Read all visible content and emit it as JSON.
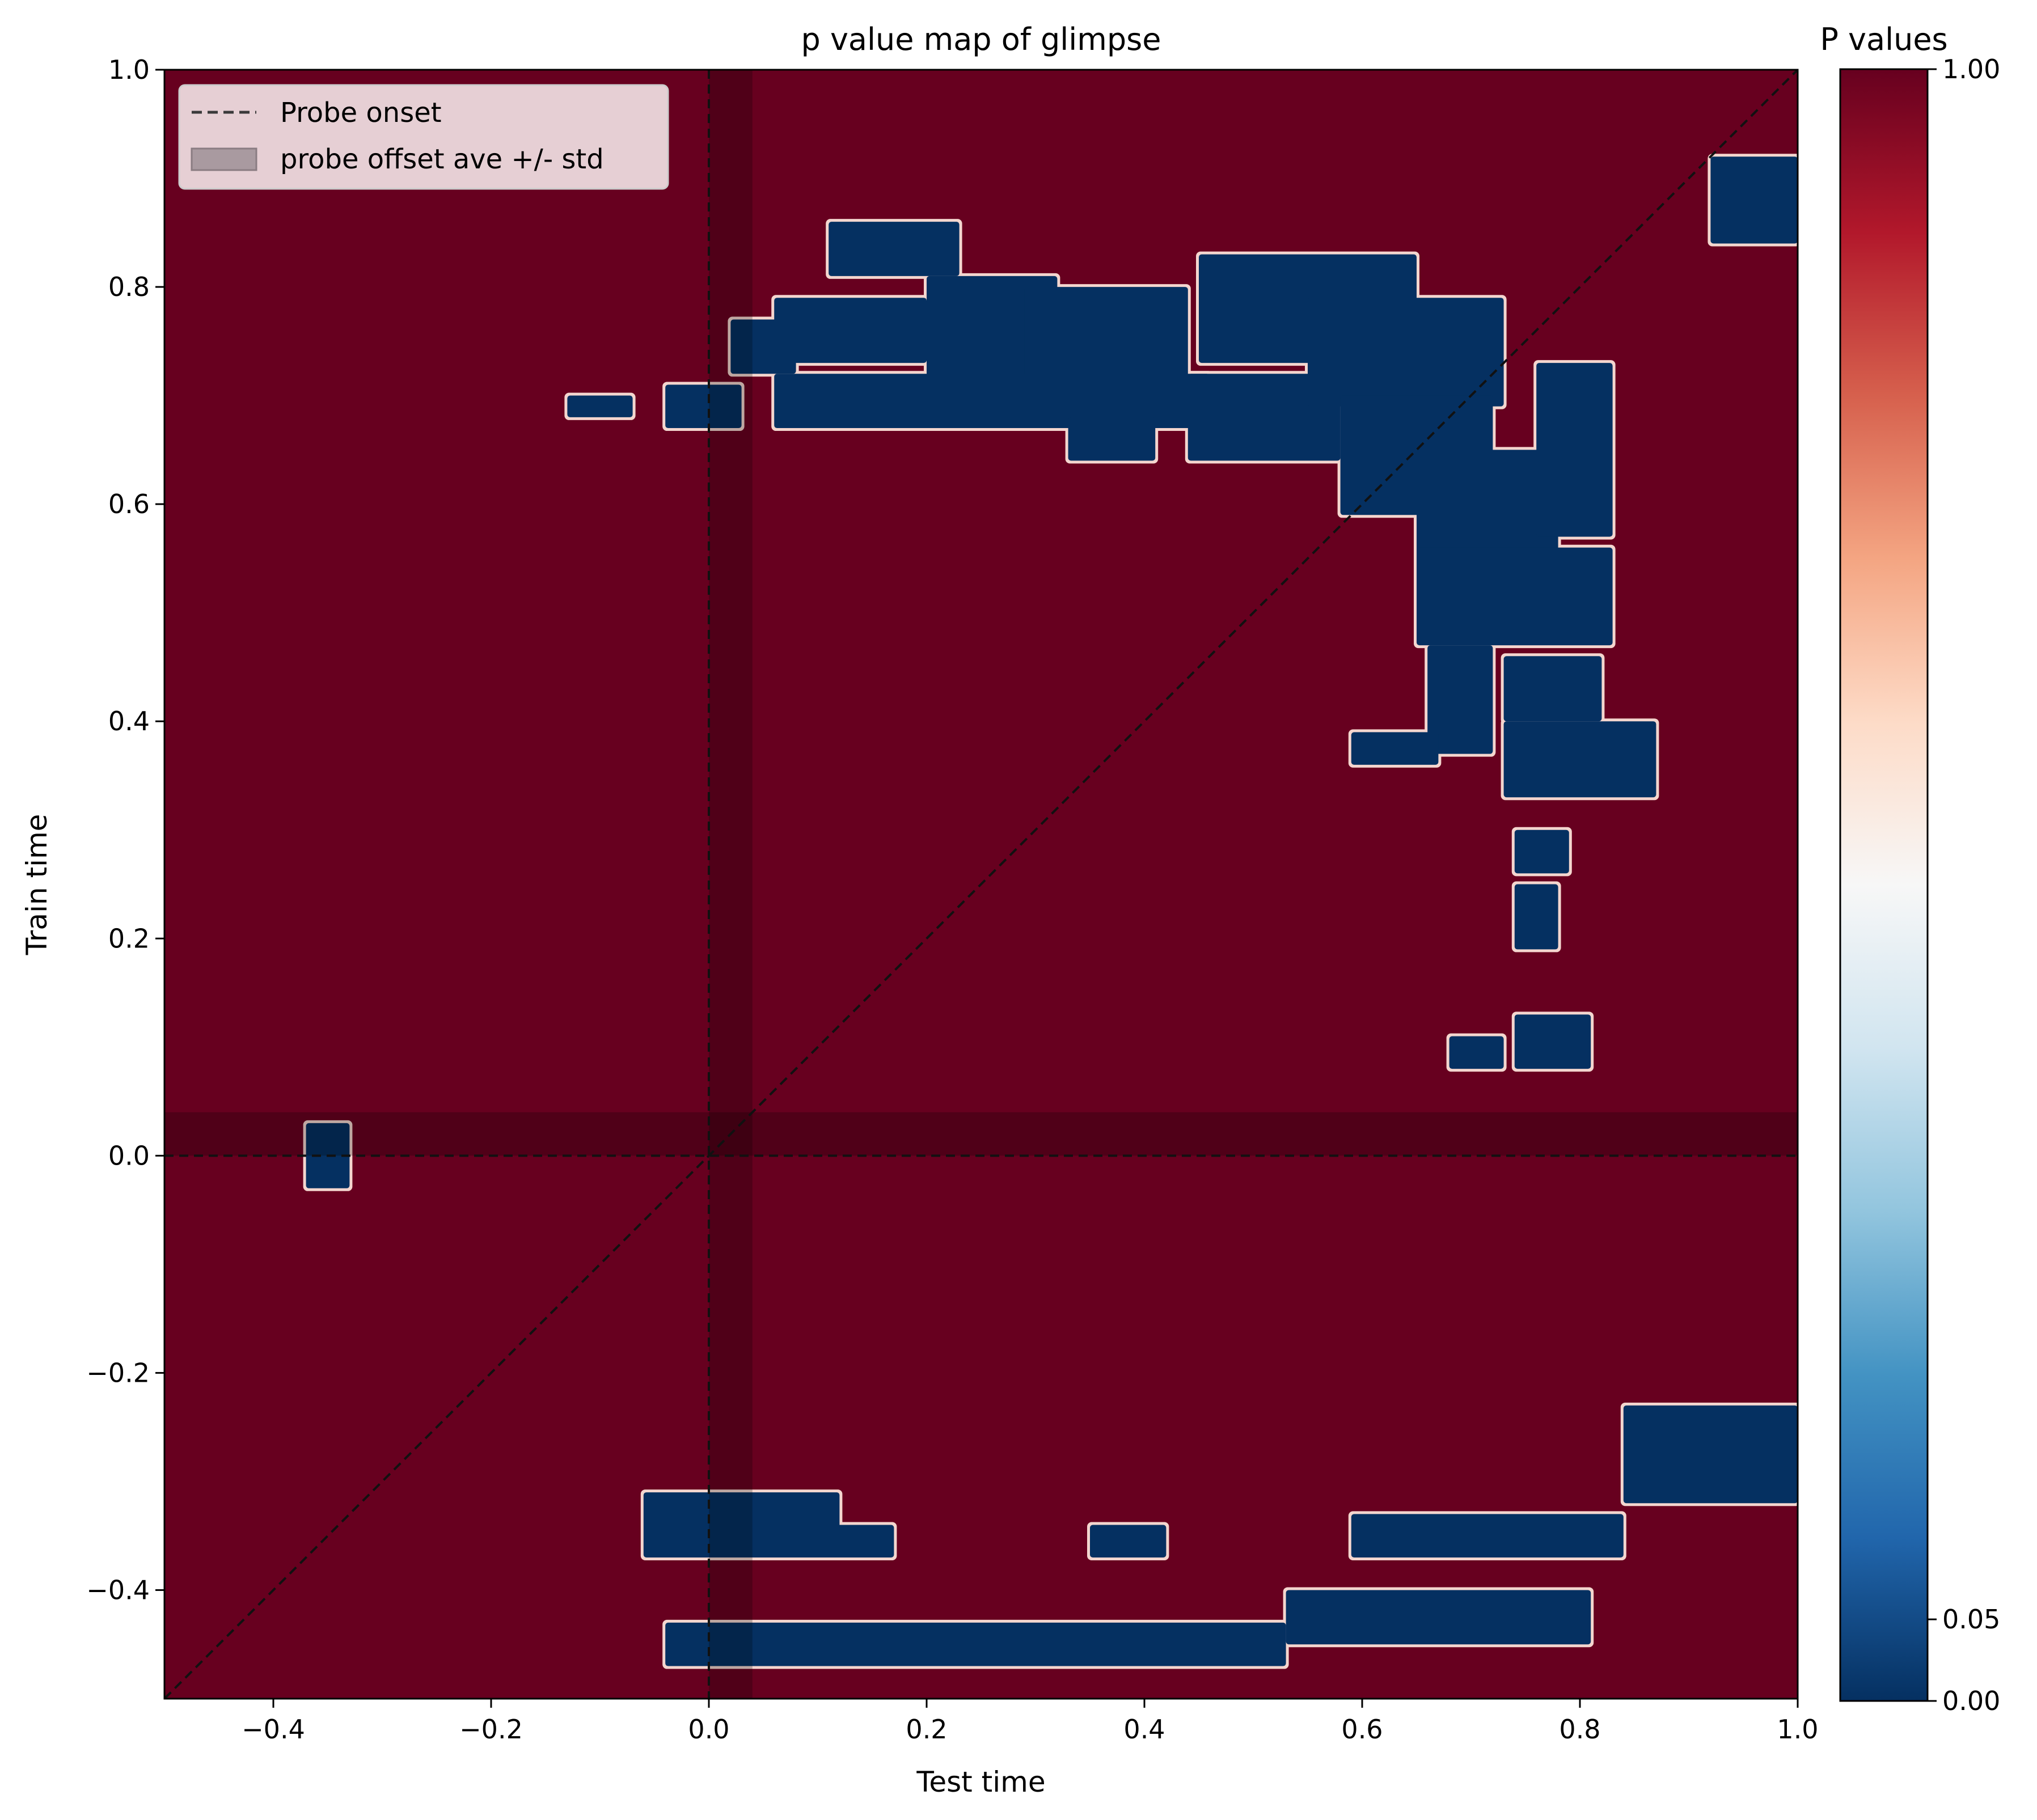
{
  "chart_data": {
    "type": "heatmap",
    "title": "p value map of glimpse",
    "xlabel": "Test time",
    "ylabel": "Train time",
    "xlim": [
      -0.5,
      1.0
    ],
    "ylim": [
      -0.5,
      1.0
    ],
    "x_ticks": [
      -0.4,
      -0.2,
      0.0,
      0.2,
      0.4,
      0.6,
      0.8,
      1.0
    ],
    "x_tick_labels": [
      "−0.4",
      "−0.2",
      "0.0",
      "0.2",
      "0.4",
      "0.6",
      "0.8",
      "1.0"
    ],
    "y_ticks": [
      -0.4,
      -0.2,
      0.0,
      0.2,
      0.4,
      0.6,
      0.8,
      1.0
    ],
    "y_tick_labels": [
      "−0.4",
      "−0.2",
      "0.0",
      "0.2",
      "0.4",
      "0.6",
      "0.8",
      "1.0"
    ],
    "grid": false,
    "colormap": "RdBu_r",
    "colors": {
      "background_p1": "#67001f",
      "significant_p0": "#053061",
      "contour_edge": "#f4d6cf",
      "shade": "#000000",
      "colorbar_stops": [
        "#053061",
        "#2166ac",
        "#4393c3",
        "#92c5de",
        "#d1e5f0",
        "#f7f7f7",
        "#fddbc7",
        "#f4a582",
        "#d6604d",
        "#b2182b",
        "#67001f"
      ]
    },
    "colorbar": {
      "title": "P values",
      "ticks": [
        0.0,
        0.05,
        1.0
      ],
      "tick_labels": [
        "0.00",
        "0.05",
        "1.00"
      ],
      "range": [
        0,
        1
      ]
    },
    "legend": {
      "placement": "upper-left",
      "entries": [
        {
          "label": "Probe onset",
          "kind": "dashed-line"
        },
        {
          "label": "probe offset ave +/- std",
          "kind": "shaded-patch"
        }
      ]
    },
    "reference_lines": [
      {
        "kind": "vertical",
        "x": 0.0,
        "style": "dashed"
      },
      {
        "kind": "horizontal",
        "y": 0.0,
        "style": "dashed"
      },
      {
        "kind": "diagonal",
        "from": [
          -0.5,
          -0.5
        ],
        "to": [
          1.0,
          1.0
        ],
        "style": "dashed"
      }
    ],
    "shaded_bands": [
      {
        "axis": "x",
        "range": [
          0.0,
          0.04
        ]
      },
      {
        "axis": "y",
        "range": [
          0.0,
          0.04
        ]
      }
    ],
    "significant_regions": [
      {
        "x": [
          -0.13,
          -0.07
        ],
        "y": [
          0.68,
          0.7
        ]
      },
      {
        "x": [
          -0.04,
          0.03
        ],
        "y": [
          0.67,
          0.71
        ]
      },
      {
        "x": [
          0.02,
          0.08
        ],
        "y": [
          0.72,
          0.77
        ]
      },
      {
        "x": [
          0.06,
          0.2
        ],
        "y": [
          0.73,
          0.79
        ]
      },
      {
        "x": [
          0.11,
          0.23
        ],
        "y": [
          0.81,
          0.86
        ]
      },
      {
        "x": [
          0.2,
          0.32
        ],
        "y": [
          0.71,
          0.81
        ]
      },
      {
        "x": [
          0.29,
          0.44
        ],
        "y": [
          0.71,
          0.8
        ]
      },
      {
        "x": [
          0.06,
          0.46
        ],
        "y": [
          0.67,
          0.72
        ]
      },
      {
        "x": [
          0.33,
          0.41
        ],
        "y": [
          0.64,
          0.68
        ]
      },
      {
        "x": [
          0.44,
          0.58
        ],
        "y": [
          0.64,
          0.72
        ]
      },
      {
        "x": [
          0.45,
          0.65
        ],
        "y": [
          0.73,
          0.83
        ]
      },
      {
        "x": [
          0.55,
          0.73
        ],
        "y": [
          0.69,
          0.79
        ]
      },
      {
        "x": [
          0.58,
          0.72
        ],
        "y": [
          0.59,
          0.7
        ]
      },
      {
        "x": [
          0.65,
          0.78
        ],
        "y": [
          0.55,
          0.65
        ]
      },
      {
        "x": [
          0.76,
          0.83
        ],
        "y": [
          0.57,
          0.73
        ]
      },
      {
        "x": [
          0.65,
          0.83
        ],
        "y": [
          0.47,
          0.56
        ]
      },
      {
        "x": [
          0.66,
          0.72
        ],
        "y": [
          0.37,
          0.47
        ]
      },
      {
        "x": [
          0.59,
          0.67
        ],
        "y": [
          0.36,
          0.39
        ]
      },
      {
        "x": [
          0.73,
          0.82
        ],
        "y": [
          0.4,
          0.46
        ]
      },
      {
        "x": [
          0.73,
          0.87
        ],
        "y": [
          0.33,
          0.4
        ]
      },
      {
        "x": [
          0.74,
          0.79
        ],
        "y": [
          0.26,
          0.3
        ]
      },
      {
        "x": [
          0.74,
          0.78
        ],
        "y": [
          0.19,
          0.25
        ]
      },
      {
        "x": [
          0.68,
          0.73
        ],
        "y": [
          0.08,
          0.11
        ]
      },
      {
        "x": [
          0.74,
          0.81
        ],
        "y": [
          0.08,
          0.13
        ]
      },
      {
        "x": [
          0.92,
          1.0
        ],
        "y": [
          0.84,
          0.92
        ]
      },
      {
        "x": [
          -0.37,
          -0.33
        ],
        "y": [
          -0.03,
          0.03
        ]
      },
      {
        "x": [
          -0.06,
          0.12
        ],
        "y": [
          -0.37,
          -0.31
        ]
      },
      {
        "x": [
          0.11,
          0.17
        ],
        "y": [
          -0.37,
          -0.34
        ]
      },
      {
        "x": [
          0.35,
          0.42
        ],
        "y": [
          -0.37,
          -0.34
        ]
      },
      {
        "x": [
          -0.04,
          0.53
        ],
        "y": [
          -0.47,
          -0.43
        ]
      },
      {
        "x": [
          0.53,
          0.81
        ],
        "y": [
          -0.45,
          -0.4
        ]
      },
      {
        "x": [
          0.59,
          0.84
        ],
        "y": [
          -0.37,
          -0.33
        ]
      },
      {
        "x": [
          0.84,
          1.0
        ],
        "y": [
          -0.32,
          -0.23
        ]
      }
    ]
  }
}
